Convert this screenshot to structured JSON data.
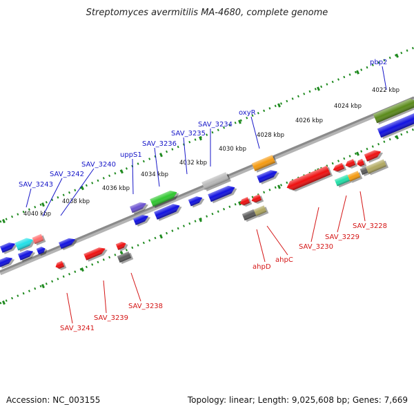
{
  "title": "Streptomyces avermitilis MA-4680, complete genome",
  "footer": {
    "accession": "Accession: NC_003155",
    "stats": "Topology: linear; Length: 9,025,608 bp; Genes: 7,669"
  },
  "colors": {
    "background": "#ffffff",
    "backbone": "#8a8a8a",
    "ruler": "#1f8a1f",
    "label_forward": "#1515c8",
    "label_reverse": "#d41414"
  },
  "ruler_ticks": [
    "4040 kbp",
    "4038 kbp",
    "4036 kbp",
    "4034 kbp",
    "4032 kbp",
    "4030 kbp",
    "4028 kbp",
    "4026 kbp",
    "4024 kbp",
    "4022 kbp"
  ],
  "gene_labels": {
    "forward": [
      "SAV_3243",
      "SAV_3242",
      "SAV_3240",
      "uppS1",
      "SAV_3236",
      "SAV_3235",
      "SAV_3234",
      "oxyR",
      "pbp2"
    ],
    "reverse": [
      "SAV_3241",
      "SAV_3239",
      "SAV_3238",
      "ahpD",
      "ahpC",
      "SAV_3230",
      "SAV_3229",
      "SAV_3228"
    ]
  }
}
